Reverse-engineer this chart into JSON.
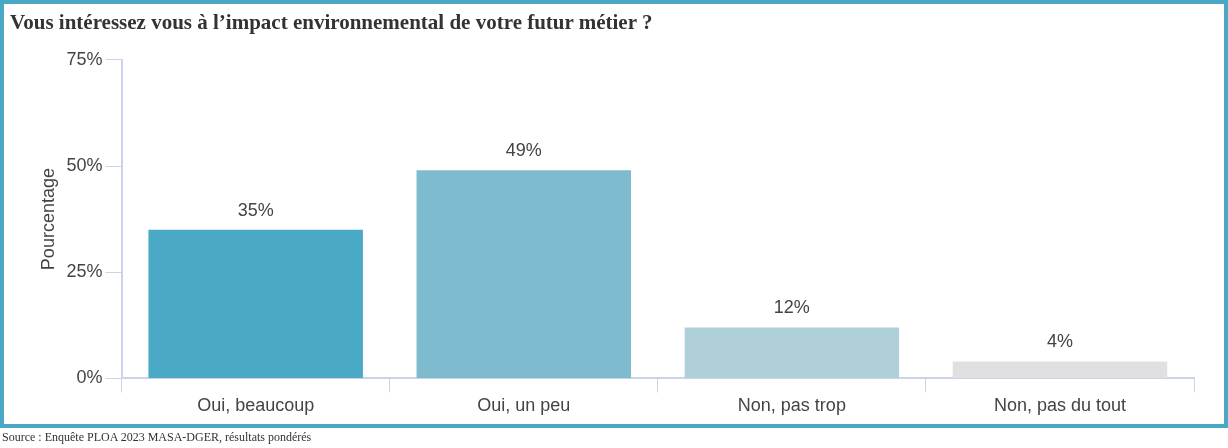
{
  "chart_data": {
    "type": "bar",
    "title": "Vous intéressez vous à l’impact environnemental de votre futur métier ?",
    "ylabel": "Pourcentage",
    "categories": [
      "Oui, beaucoup",
      "Oui, un peu",
      "Non, pas trop",
      "Non, pas du tout"
    ],
    "values": [
      35,
      49,
      12,
      4
    ],
    "colors": [
      "#4aaac5",
      "#7fbbcf",
      "#b0d0d9",
      "#e0e0e0"
    ],
    "value_labels": [
      "35%",
      "49%",
      "12%",
      "4%"
    ],
    "ylim": [
      0,
      75
    ],
    "yticks": [
      {
        "value": 0,
        "label": "0%"
      },
      {
        "value": 25,
        "label": "25%"
      },
      {
        "value": 50,
        "label": "50%"
      },
      {
        "value": 75,
        "label": "75%"
      }
    ],
    "grid": false,
    "legend": false,
    "annotations": [
      "Source : Enquête PLOA 2023 MASA-DGER, résultats pondérés"
    ]
  }
}
